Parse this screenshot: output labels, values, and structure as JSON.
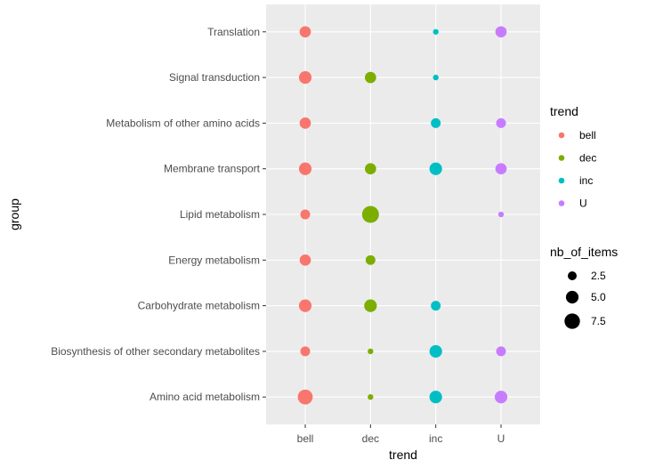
{
  "chart_data": {
    "type": "scatter",
    "title": "",
    "xlabel": "trend",
    "ylabel": "group",
    "grid": true,
    "background": "#ebebeb",
    "categories_x": [
      "bell",
      "dec",
      "inc",
      "U"
    ],
    "categories_y": [
      "Amino acid metabolism",
      "Biosynthesis of other secondary metabolites",
      "Carbohydrate metabolism",
      "Energy metabolism",
      "Lipid metabolism",
      "Membrane transport",
      "Metabolism of other amino acids",
      "Signal transduction",
      "Translation"
    ],
    "series": [
      {
        "name": "bell",
        "color": "#F8766D",
        "points": [
          {
            "group": "Translation",
            "size": 4
          },
          {
            "group": "Signal transduction",
            "size": 5
          },
          {
            "group": "Metabolism of other amino acids",
            "size": 4
          },
          {
            "group": "Membrane transport",
            "size": 5
          },
          {
            "group": "Lipid metabolism",
            "size": 3
          },
          {
            "group": "Energy metabolism",
            "size": 4
          },
          {
            "group": "Carbohydrate metabolism",
            "size": 5
          },
          {
            "group": "Biosynthesis of other secondary metabolites",
            "size": 3
          },
          {
            "group": "Amino acid metabolism",
            "size": 7
          }
        ]
      },
      {
        "name": "dec",
        "color": "#7CAE00",
        "points": [
          {
            "group": "Signal transduction",
            "size": 4
          },
          {
            "group": "Membrane transport",
            "size": 4
          },
          {
            "group": "Lipid metabolism",
            "size": 9
          },
          {
            "group": "Energy metabolism",
            "size": 3
          },
          {
            "group": "Carbohydrate metabolism",
            "size": 5
          },
          {
            "group": "Biosynthesis of other secondary metabolites",
            "size": 1
          },
          {
            "group": "Amino acid metabolism",
            "size": 1
          }
        ]
      },
      {
        "name": "inc",
        "color": "#00BFC4",
        "points": [
          {
            "group": "Translation",
            "size": 1
          },
          {
            "group": "Signal transduction",
            "size": 1
          },
          {
            "group": "Metabolism of other amino acids",
            "size": 3
          },
          {
            "group": "Membrane transport",
            "size": 5
          },
          {
            "group": "Carbohydrate metabolism",
            "size": 3
          },
          {
            "group": "Biosynthesis of other secondary metabolites",
            "size": 5
          },
          {
            "group": "Amino acid metabolism",
            "size": 5
          }
        ]
      },
      {
        "name": "U",
        "color": "#C77CFF",
        "points": [
          {
            "group": "Translation",
            "size": 4
          },
          {
            "group": "Metabolism of other amino acids",
            "size": 3
          },
          {
            "group": "Membrane transport",
            "size": 4
          },
          {
            "group": "Lipid metabolism",
            "size": 1
          },
          {
            "group": "Biosynthesis of other secondary metabolites",
            "size": 3
          },
          {
            "group": "Amino acid metabolism",
            "size": 5
          }
        ]
      }
    ],
    "legend_color": {
      "title": "trend",
      "entries": [
        "bell",
        "dec",
        "inc",
        "U"
      ]
    },
    "legend_size": {
      "title": "nb_of_items",
      "entries": [
        {
          "label": "2.5",
          "value": 2.5
        },
        {
          "label": "5.0",
          "value": 5.0
        },
        {
          "label": "7.5",
          "value": 7.5
        }
      ]
    },
    "legend_position": "right"
  }
}
